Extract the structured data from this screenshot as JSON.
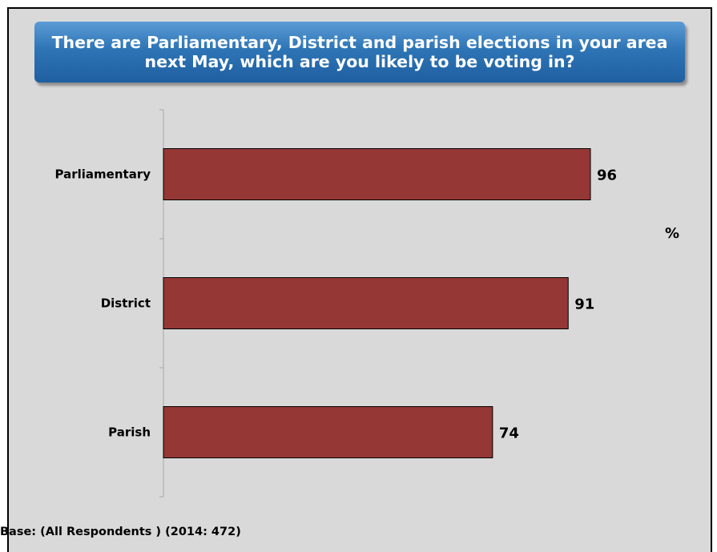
{
  "chart_data": {
    "type": "bar",
    "orientation": "horizontal",
    "title": "There are Parliamentary, District and parish elections in your area next May, which are you likely to be voting in?",
    "categories": [
      "Parliamentary",
      "District",
      "Parish"
    ],
    "values": [
      96,
      91,
      74
    ],
    "value_unit": "%",
    "xlim": [
      0,
      100
    ],
    "grid": false,
    "legend": "none",
    "bar_color": "#953735",
    "note": "Base: (All Respondents ) (2014: 472)"
  }
}
